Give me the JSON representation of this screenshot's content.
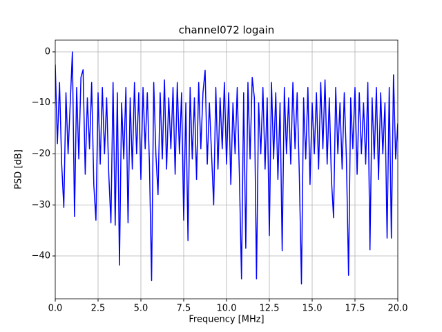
{
  "chart_data": {
    "type": "line",
    "title": "channel072 logain",
    "xlabel": "Frequency [MHz]",
    "ylabel": "PSD [dB]",
    "x": [
      0,
      0.125,
      0.25,
      0.375,
      0.5,
      0.625,
      0.75,
      0.875,
      1,
      1.125,
      1.25,
      1.375,
      1.5,
      1.625,
      1.75,
      1.875,
      2,
      2.125,
      2.25,
      2.375,
      2.5,
      2.625,
      2.75,
      2.875,
      3,
      3.125,
      3.25,
      3.375,
      3.5,
      3.625,
      3.75,
      3.875,
      4,
      4.125,
      4.25,
      4.375,
      4.5,
      4.625,
      4.75,
      4.875,
      5,
      5.125,
      5.25,
      5.375,
      5.5,
      5.625,
      5.75,
      5.875,
      6,
      6.125,
      6.25,
      6.375,
      6.5,
      6.625,
      6.75,
      6.875,
      7,
      7.125,
      7.25,
      7.375,
      7.5,
      7.625,
      7.75,
      7.875,
      8,
      8.125,
      8.25,
      8.375,
      8.5,
      8.625,
      8.75,
      8.875,
      9,
      9.125,
      9.25,
      9.375,
      9.5,
      9.625,
      9.75,
      9.875,
      10,
      10.125,
      10.25,
      10.375,
      10.5,
      10.625,
      10.75,
      10.875,
      11,
      11.125,
      11.25,
      11.375,
      11.5,
      11.625,
      11.75,
      11.875,
      12,
      12.125,
      12.25,
      12.375,
      12.5,
      12.625,
      12.75,
      12.875,
      13,
      13.125,
      13.25,
      13.375,
      13.5,
      13.625,
      13.75,
      13.875,
      14,
      14.125,
      14.25,
      14.375,
      14.5,
      14.625,
      14.75,
      14.875,
      15,
      15.125,
      15.25,
      15.375,
      15.5,
      15.625,
      15.75,
      15.875,
      16,
      16.125,
      16.25,
      16.375,
      16.5,
      16.625,
      16.75,
      16.875,
      17,
      17.125,
      17.25,
      17.375,
      17.5,
      17.625,
      17.75,
      17.875,
      18,
      18.125,
      18.25,
      18.375,
      18.5,
      18.625,
      18.75,
      18.875,
      19,
      19.125,
      19.25,
      19.375,
      19.5,
      19.625,
      19.75,
      19.875,
      20
    ],
    "series": [
      {
        "name": "logain",
        "color": "#0000ff",
        "values": [
          -2.5,
          -18,
          -6,
          -22,
          -30.5,
          -8,
          -20,
          -10,
          0,
          -32.3,
          -7,
          -21,
          -5,
          -3.5,
          -24,
          -9,
          -19,
          -6,
          -26,
          -33,
          -8,
          -22,
          -7,
          -20,
          -9,
          -24,
          -33.5,
          -6,
          -34,
          -8,
          -41.8,
          -10,
          -21,
          -7,
          -33.5,
          -9,
          -23,
          -6,
          -20,
          -8,
          -25,
          -7,
          -19,
          -8,
          -22,
          -44.8,
          -6,
          -20,
          -28,
          -8,
          -21,
          -5.5,
          -23,
          -9,
          -19,
          -7,
          -24,
          -6,
          -20,
          -8,
          -33,
          -10,
          -37,
          -7,
          -21,
          -9,
          -25,
          -6,
          -19,
          -8,
          -3.6,
          -22,
          -10,
          -20,
          -30,
          -7,
          -23,
          -9,
          -19,
          -6,
          -22,
          -8,
          -26,
          -10,
          -20,
          -7,
          -24,
          -44.5,
          -8,
          -38.5,
          -6,
          -21,
          -5,
          -9,
          -44.5,
          -10,
          -20,
          -7,
          -23,
          -9,
          -36,
          -6,
          -21,
          -8,
          -25,
          -10,
          -39,
          -7,
          -20,
          -9,
          -22,
          -6,
          -19,
          -8,
          -24,
          -45.5,
          -9,
          -21,
          -7,
          -26,
          -10,
          -20,
          -8,
          -23,
          -6,
          -19,
          -5.5,
          -22,
          -9,
          -25,
          -32.5,
          -7,
          -20,
          -10,
          -23,
          -8,
          -21,
          -43.8,
          -9,
          -19,
          -7,
          -24,
          -8,
          -20,
          -10,
          -22,
          -6,
          -38.8,
          -9,
          -21,
          -7,
          -25,
          -8,
          -20,
          -10,
          -36.5,
          -7,
          -36.5,
          -4.5,
          -21,
          -14
        ]
      }
    ],
    "xlim": [
      0,
      20
    ],
    "ylim": [
      -48.4,
      2.3
    ],
    "xticks": [
      {
        "value": 0,
        "label": "0.0"
      },
      {
        "value": 2.5,
        "label": "2.5"
      },
      {
        "value": 5,
        "label": "5.0"
      },
      {
        "value": 7.5,
        "label": "7.5"
      },
      {
        "value": 10,
        "label": "10.0"
      },
      {
        "value": 12.5,
        "label": "12.5"
      },
      {
        "value": 15,
        "label": "15.0"
      },
      {
        "value": 17.5,
        "label": "17.5"
      },
      {
        "value": 20,
        "label": "20.0"
      }
    ],
    "yticks": [
      {
        "value": 0,
        "label": "0"
      },
      {
        "value": -10,
        "label": "−10"
      },
      {
        "value": -20,
        "label": "−20"
      },
      {
        "value": -30,
        "label": "−30"
      },
      {
        "value": -40,
        "label": "−40"
      }
    ],
    "grid": true
  }
}
